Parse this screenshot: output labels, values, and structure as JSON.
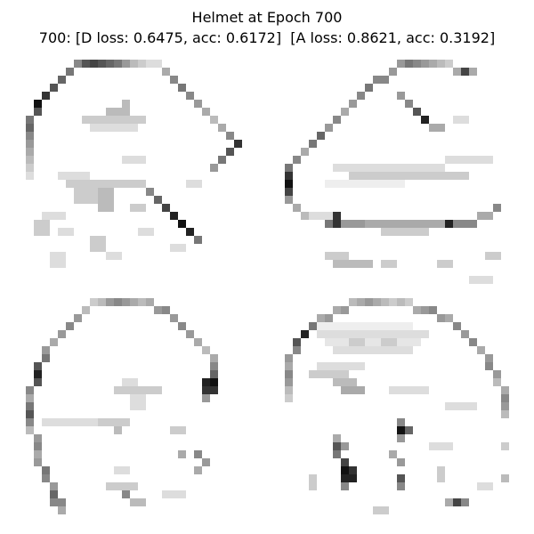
{
  "figure": {
    "title": "Helmet at Epoch 700",
    "subtitle": "700: [D loss: 0.6475, acc: 0.6172]  [A loss: 0.8621, acc: 0.3192]"
  },
  "samples": [
    {
      "label": ""
    },
    {
      "label": ""
    },
    {
      "label": ""
    },
    {
      "label": ""
    }
  ]
}
